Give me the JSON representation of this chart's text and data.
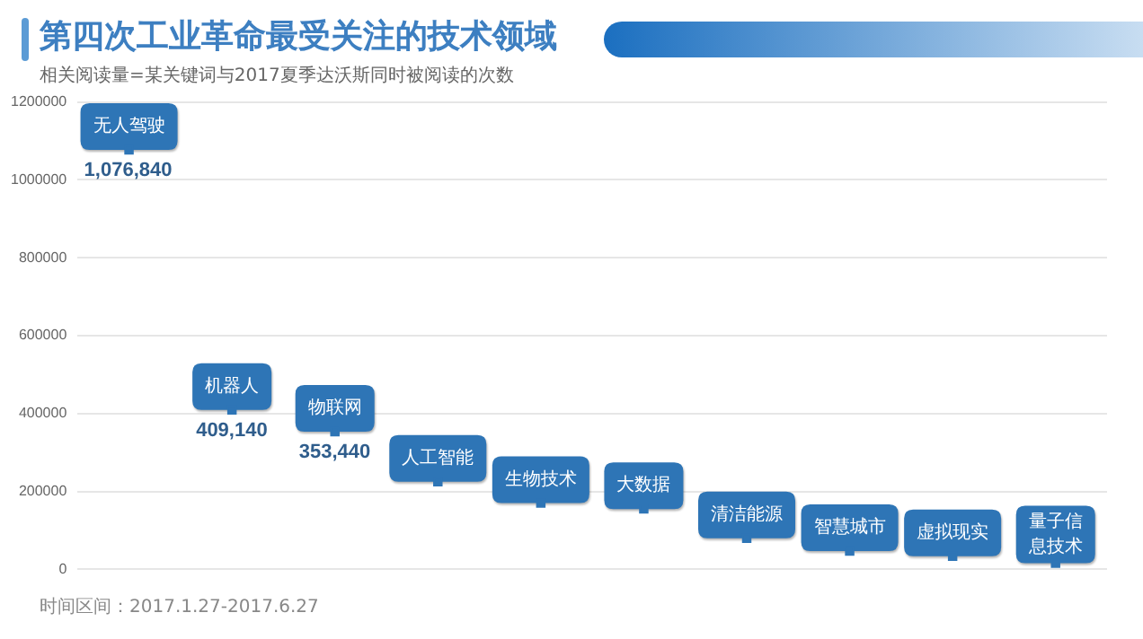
{
  "chart_data": {
    "type": "scatter",
    "title": "第四次工业革命最受关注的技术领域",
    "subtitle": "相关阅读量=某关键词与2017夏季达沃斯同时被阅读的次数",
    "categories": [
      "无人驾驶",
      "机器人",
      "物联网",
      "人工智能",
      "生物技术",
      "大数据",
      "清洁能源",
      "智慧城市",
      "虚拟现实",
      "量子信息技术"
    ],
    "values": [
      1076840,
      409140,
      353440,
      225000,
      170000,
      155000,
      80000,
      47000,
      34000,
      16000
    ],
    "value_labels": [
      "1,076,840",
      "409,140",
      "353,440",
      null,
      null,
      null,
      null,
      null,
      null,
      null
    ],
    "color": "#2e75b6",
    "marker": "square",
    "ylim": [
      0,
      1200000
    ],
    "yticks": [
      0,
      200000,
      400000,
      600000,
      800000,
      1000000,
      1200000
    ],
    "grid": "y",
    "tick_labels": "y",
    "legend": false,
    "annotations": [
      "时间区间：2017.1.27-2017.6.27"
    ]
  }
}
